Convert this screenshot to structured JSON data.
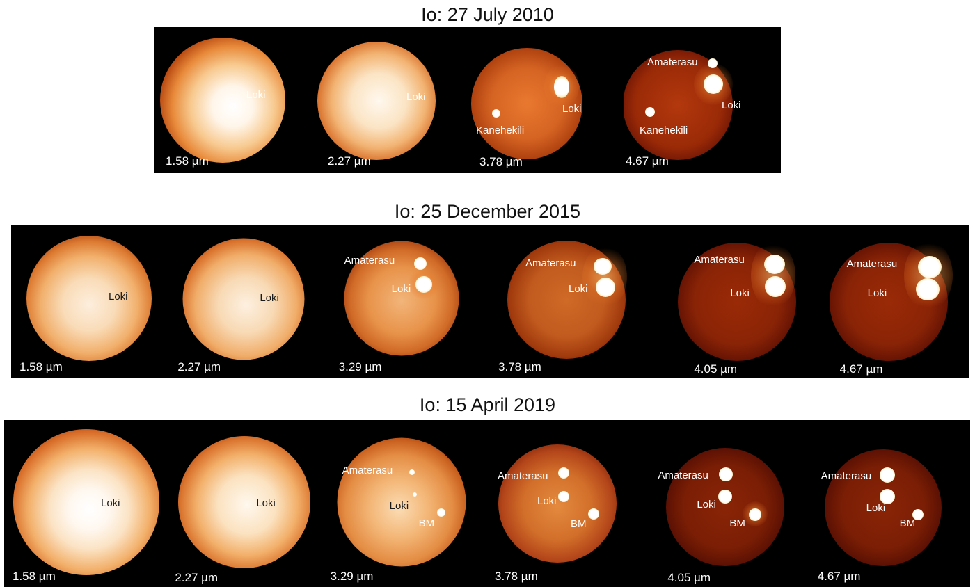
{
  "rows": [
    {
      "title": "Io: 27 July 2010",
      "panels": [
        {
          "wavelength": "1.58 µm",
          "labels": [
            "Loki"
          ]
        },
        {
          "wavelength": "2.27 µm",
          "labels": [
            "Loki"
          ]
        },
        {
          "wavelength": "3.78 µm",
          "labels": [
            "Kanehekili",
            "Loki"
          ]
        },
        {
          "wavelength": "4.67 µm",
          "labels": [
            "Amaterasu",
            "Loki",
            "Kanehekili"
          ]
        }
      ]
    },
    {
      "title": "Io: 25 December 2015",
      "panels": [
        {
          "wavelength": "1.58 µm",
          "labels": [
            "Loki"
          ]
        },
        {
          "wavelength": "2.27 µm",
          "labels": [
            "Loki"
          ]
        },
        {
          "wavelength": "3.29 µm",
          "labels": [
            "Amaterasu",
            "Loki"
          ]
        },
        {
          "wavelength": "3.78 µm",
          "labels": [
            "Amaterasu",
            "Loki"
          ]
        },
        {
          "wavelength": "4.05 µm",
          "labels": [
            "Amaterasu",
            "Loki"
          ]
        },
        {
          "wavelength": "4.67 µm",
          "labels": [
            "Amaterasu",
            "Loki"
          ]
        }
      ]
    },
    {
      "title": "Io: 15 April 2019",
      "panels": [
        {
          "wavelength": "1.58 µm",
          "labels": [
            "Loki"
          ]
        },
        {
          "wavelength": "2.27 µm",
          "labels": [
            "Loki"
          ]
        },
        {
          "wavelength": "3.29 µm",
          "labels": [
            "Amaterasu",
            "Loki",
            "BM"
          ]
        },
        {
          "wavelength": "3.78 µm",
          "labels": [
            "Amaterasu",
            "Loki",
            "BM"
          ]
        },
        {
          "wavelength": "4.05 µm",
          "labels": [
            "Amaterasu",
            "Loki",
            "BM"
          ]
        },
        {
          "wavelength": "4.67 µm",
          "labels": [
            "Amaterasu",
            "Loki",
            "BM"
          ]
        }
      ]
    }
  ],
  "colors": {
    "background": "#ffffff",
    "frame": "#000000",
    "disk_bright": "#fff6ea",
    "disk_mid": "#e88a3a",
    "disk_dark": "#7a1a04",
    "hotspot": "#ffffff"
  }
}
